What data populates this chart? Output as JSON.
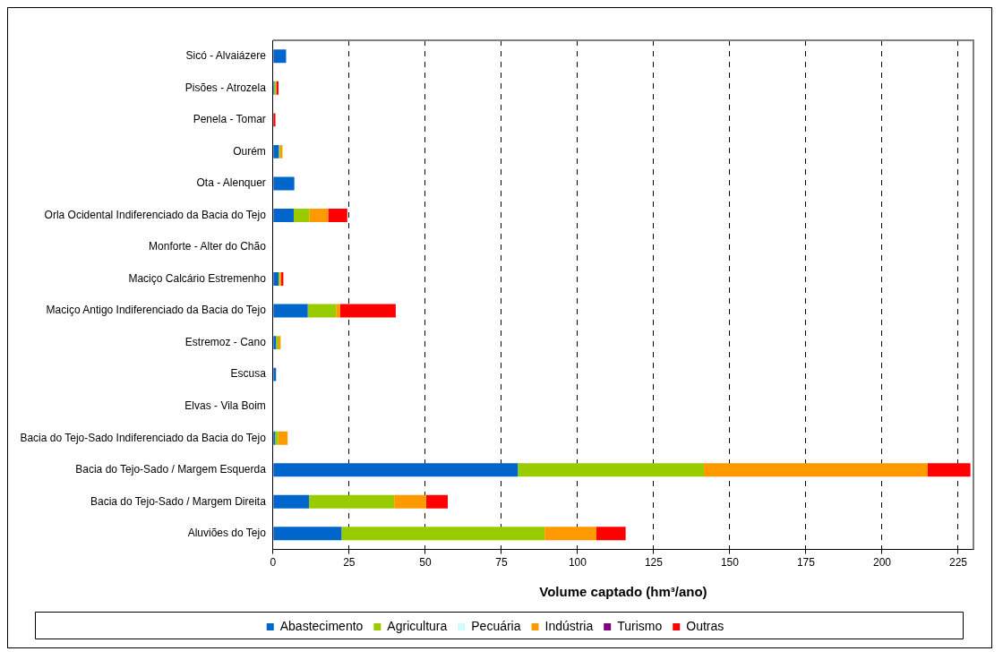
{
  "chart_data": {
    "type": "bar",
    "orientation": "horizontal",
    "stacked": true,
    "xlabel": "Volume captado (hm³/ano)",
    "categories": [
      "Sicó - Alvaiázere",
      "Pisões - Atrozela",
      "Penela - Tomar",
      "Ourém",
      "Ota - Alenquer",
      "Orla Ocidental Indiferenciado da Bacia do Tejo",
      "Monforte - Alter do Chão",
      "Maciço Calcário Estremenho",
      "Maciço Antigo Indiferenciado da Bacia do Tejo",
      "Estremoz - Cano",
      "Escusa",
      "Elvas - Vila Boim",
      "Bacia do Tejo-Sado Indiferenciado da Bacia do Tejo",
      "Bacia do Tejo-Sado / Margem Esquerda",
      "Bacia do Tejo-Sado / Margem Direita",
      "Aluviões do Tejo"
    ],
    "series": [
      {
        "name": "Abastecimento",
        "color": "#0066cc",
        "values": [
          4.3,
          0.4,
          0,
          1.9,
          7.0,
          6.8,
          0,
          1.8,
          11.4,
          1.0,
          1.0,
          0,
          0.7,
          80.4,
          11.8,
          22.5
        ]
      },
      {
        "name": "Agricultura",
        "color": "#99cc00",
        "values": [
          0,
          0.5,
          0,
          0.4,
          0,
          5.1,
          0,
          0.4,
          9.3,
          0.8,
          0,
          0,
          1.0,
          61.1,
          28.0,
          66.7
        ]
      },
      {
        "name": "Pecuária",
        "color": "#ccffff",
        "values": [
          0,
          0,
          0,
          0,
          0,
          0,
          0,
          0,
          null,
          0,
          0,
          0,
          0,
          null,
          null,
          null
        ]
      },
      {
        "name": "Indústria",
        "color": "#ff9900",
        "values": [
          0,
          0.2,
          0,
          0.8,
          0,
          6.2,
          0,
          0.5,
          1.4,
          0.7,
          0,
          0,
          3.1,
          73.5,
          10.5,
          17.0
        ]
      },
      {
        "name": "Turismo",
        "color": "#800080",
        "values": [
          0,
          0,
          0,
          0,
          0,
          0,
          0,
          0,
          0,
          0,
          0,
          0,
          0,
          0,
          0,
          0
        ]
      },
      {
        "name": "Outras",
        "color": "#ff0000",
        "values": [
          0,
          0.7,
          0.8,
          0,
          0,
          6.3,
          0,
          0.7,
          18.2,
          0,
          0,
          0,
          0,
          14.0,
          7.1,
          9.6
        ]
      }
    ],
    "xlim": [
      0,
      230
    ],
    "xticks": [
      0,
      25,
      50,
      75,
      100,
      125,
      150,
      175,
      200,
      225
    ],
    "grid": "x",
    "legend": "bottom"
  }
}
